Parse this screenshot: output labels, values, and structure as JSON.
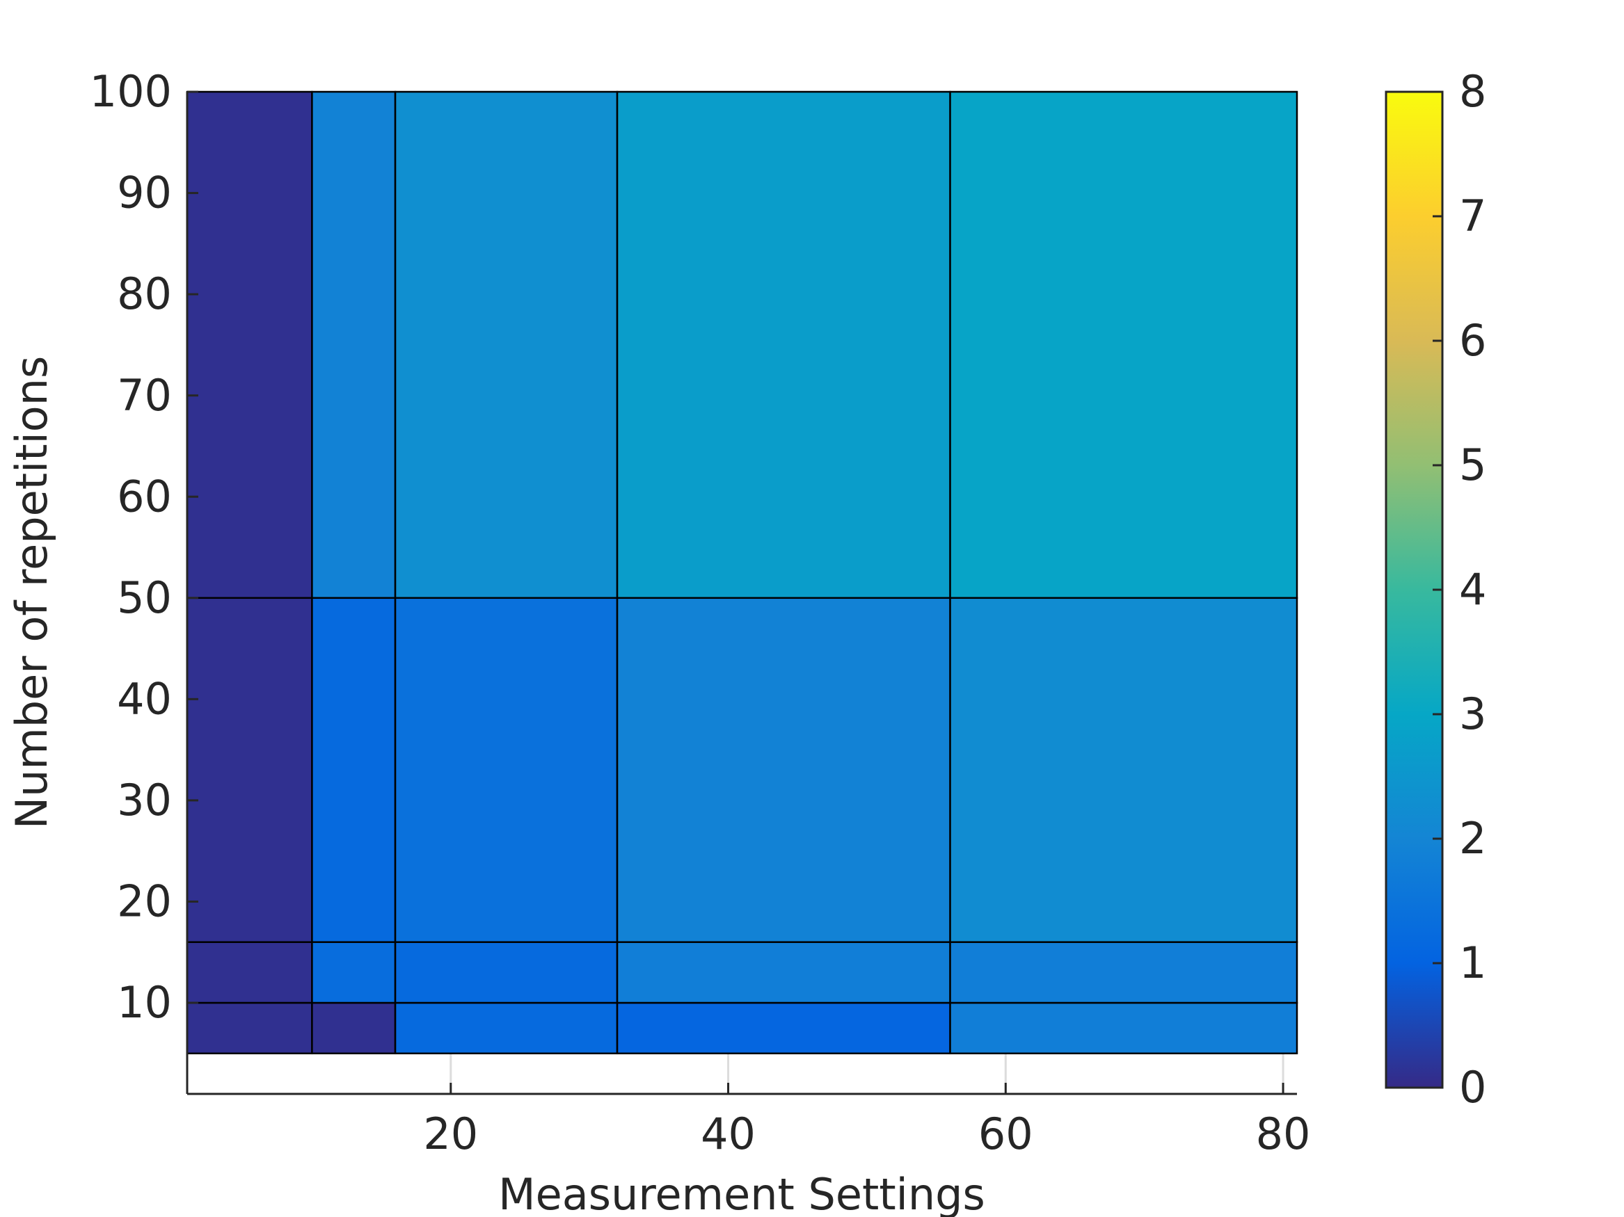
{
  "chart_data": {
    "type": "heatmap",
    "xlabel": "Measurement Settings",
    "ylabel": "Number of repetitions",
    "x_edges": [
      1,
      10,
      16,
      32,
      56,
      81
    ],
    "y_edges": [
      5,
      10,
      16,
      50,
      100
    ],
    "values": [
      [
        0.1,
        0.1,
        1.2,
        1.1,
        1.8
      ],
      [
        0.1,
        1.3,
        1.2,
        1.8,
        1.8
      ],
      [
        0.1,
        1.2,
        1.4,
        1.9,
        2.2
      ],
      [
        0.1,
        1.9,
        2.3,
        2.7,
        2.9
      ]
    ],
    "xlim": [
      1,
      81
    ],
    "xticks": [
      20,
      40,
      60,
      80
    ],
    "ylim": [
      1,
      100
    ],
    "yticks": [
      10,
      20,
      30,
      40,
      50,
      60,
      70,
      80,
      90,
      100
    ],
    "clim": [
      0,
      8
    ],
    "cticks": [
      0,
      1,
      2,
      3,
      4,
      5,
      6,
      7,
      8
    ],
    "colormap": [
      "#352a87",
      "#0363e1",
      "#1485d4",
      "#06a7c6",
      "#38b99e",
      "#92bf73",
      "#d9ba56",
      "#fcce2e",
      "#f9fb0e"
    ],
    "grid": true
  }
}
